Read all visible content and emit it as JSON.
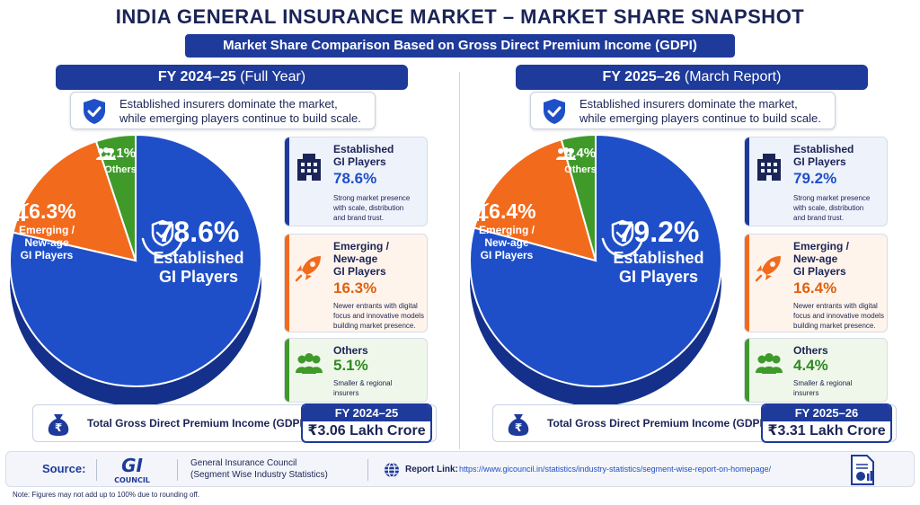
{
  "header": {
    "title": "INDIA GENERAL INSURANCE MARKET – MARKET SHARE SNAPSHOT",
    "subtitle": "Market Share Comparison Based on Gross Direct Premium Income (GDPI)"
  },
  "colors": {
    "established": "#1f4fc8",
    "emerging": "#f26b1d",
    "others": "#3f9a2a",
    "navy": "#1e3a9a"
  },
  "callout_text_1": "Established insurers dominate the market,",
  "callout_text_2": "while emerging players continue to build scale.",
  "panels": [
    {
      "fy_label": "FY 2024–25",
      "fy_suffix": "(Full Year)",
      "established": {
        "pct": "78.6%",
        "name_1": "Established",
        "name_2": "GI Players",
        "desc_1": "Strong market presence",
        "desc_2": "with scale, distribution",
        "desc_3": "and brand trust."
      },
      "emerging": {
        "pct": "16.3%",
        "pie_1": "Emerging /",
        "pie_2": "New-age",
        "pie_3": "GI Players",
        "name_1": "Emerging /",
        "name_2": "New-age",
        "name_3": "GI Players",
        "desc_1": "Newer entrants with digital",
        "desc_2": "focus and innovative models",
        "desc_3": "building market presence."
      },
      "others": {
        "pct": "5.1%",
        "name": "Others",
        "desc_1": "Smaller & regional",
        "desc_2": "insurers"
      },
      "gdpi_label": "Total Gross Direct Premium Income (GDPI)",
      "gdpi_year": "FY 2024–25",
      "gdpi_value": "₹3.06 Lakh Crore"
    },
    {
      "fy_label": "FY 2025–26",
      "fy_suffix": "(March Report)",
      "established": {
        "pct": "79.2%",
        "name_1": "Established",
        "name_2": "GI Players",
        "desc_1": "Strong market presence",
        "desc_2": "with scale, distribution",
        "desc_3": "and brand trust."
      },
      "emerging": {
        "pct": "16.4%",
        "pie_1": "Emerging /",
        "pie_2": "New-age",
        "pie_3": "GI Players",
        "name_1": "Emerging /",
        "name_2": "New-age",
        "name_3": "GI Players",
        "desc_1": "Newer entrants with digital",
        "desc_2": "focus and innovative models",
        "desc_3": "building market presence."
      },
      "others": {
        "pct": "4.4%",
        "name": "Others",
        "desc_1": "Smaller & regional",
        "desc_2": "insurers"
      },
      "gdpi_label": "Total Gross Direct Premium Income (GDPI)",
      "gdpi_year": "FY 2025–26",
      "gdpi_value": "₹3.31 Lakh Crore"
    }
  ],
  "chart_data": [
    {
      "type": "pie",
      "title": "FY 2024–25 (Full Year)",
      "categories": [
        "Established GI Players",
        "Emerging / New-age GI Players",
        "Others"
      ],
      "values": [
        78.6,
        16.3,
        5.1
      ],
      "colors": [
        "#1f4fc8",
        "#f26b1d",
        "#3f9a2a"
      ]
    },
    {
      "type": "pie",
      "title": "FY 2025–26 (March Report)",
      "categories": [
        "Established GI Players",
        "Emerging / New-age GI Players",
        "Others"
      ],
      "values": [
        79.2,
        16.4,
        4.4
      ],
      "colors": [
        "#1f4fc8",
        "#f26b1d",
        "#3f9a2a"
      ]
    }
  ],
  "footer": {
    "source_label": "Source:",
    "logo_main": "GI",
    "logo_sub": "COUNCIL",
    "org_1": "General Insurance Council",
    "org_2": "(Segment Wise Industry Statistics)",
    "report_link_label": "Report Link:",
    "url": "https://www.gicouncil.in/statistics/industry-statistics/segment-wise-report-on-homepage/"
  },
  "note": "Note: Figures may not add up to 100% due to rounding off."
}
